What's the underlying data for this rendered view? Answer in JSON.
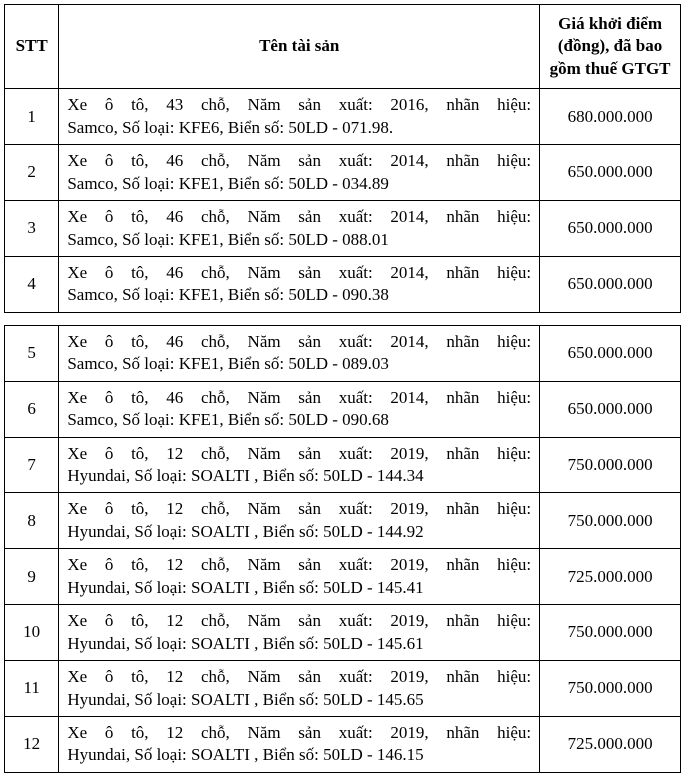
{
  "headers": {
    "stt": "STT",
    "name": "Tên tài sản",
    "price": "Giá khởi điểm (đồng), đã bao gồm thuế GTGT"
  },
  "group1": [
    {
      "stt": "1",
      "line1": "Xe ô tô, 43 chỗ, Năm sản xuất: 2016, nhãn hiệu:",
      "line2": "Samco, Số loại: KFE6, Biển số: 50LD - 071.98.",
      "price": "680.000.000"
    },
    {
      "stt": "2",
      "line1": "Xe ô tô, 46 chỗ, Năm sản xuất: 2014, nhãn hiệu:",
      "line2": "Samco, Số loại: KFE1, Biển số: 50LD - 034.89",
      "price": "650.000.000"
    },
    {
      "stt": "3",
      "line1": "Xe ô tô, 46 chỗ, Năm sản xuất: 2014, nhãn hiệu:",
      "line2": "Samco, Số loại: KFE1, Biển số: 50LD - 088.01",
      "price": "650.000.000"
    },
    {
      "stt": "4",
      "line1": "Xe ô tô, 46 chỗ, Năm sản xuất: 2014, nhãn hiệu:",
      "line2": "Samco, Số loại: KFE1, Biển số: 50LD - 090.38",
      "price": "650.000.000"
    }
  ],
  "group2": [
    {
      "stt": "5",
      "line1": "Xe ô tô, 46 chỗ, Năm sản xuất: 2014, nhãn hiệu:",
      "line2": "Samco, Số loại: KFE1, Biển số: 50LD - 089.03",
      "price": "650.000.000"
    },
    {
      "stt": "6",
      "line1": "Xe ô tô, 46 chỗ, Năm sản xuất: 2014, nhãn hiệu:",
      "line2": "Samco, Số loại: KFE1, Biển số: 50LD - 090.68",
      "price": "650.000.000"
    },
    {
      "stt": "7",
      "line1": "Xe ô tô, 12 chỗ, Năm sản xuất: 2019, nhãn hiệu:",
      "line2": "Hyundai, Số loại: SOALTI , Biển số: 50LD - 144.34",
      "price": "750.000.000"
    },
    {
      "stt": "8",
      "line1": "Xe ô tô, 12 chỗ, Năm sản xuất: 2019, nhãn hiệu:",
      "line2": "Hyundai, Số loại: SOALTI , Biển số: 50LD - 144.92",
      "price": "750.000.000"
    },
    {
      "stt": "9",
      "line1": "Xe ô tô, 12 chỗ, Năm sản xuất: 2019, nhãn hiệu:",
      "line2": "Hyundai, Số loại: SOALTI , Biển số: 50LD - 145.41",
      "price": "725.000.000"
    },
    {
      "stt": "10",
      "line1": "Xe ô tô, 12 chỗ, Năm sản xuất: 2019, nhãn hiệu:",
      "line2": "Hyundai, Số loại: SOALTI , Biển số: 50LD - 145.61",
      "price": "750.000.000"
    },
    {
      "stt": "11",
      "line1": "Xe ô tô, 12 chỗ, Năm sản xuất: 2019, nhãn hiệu:",
      "line2": "Hyundai, Số loại: SOALTI , Biển số: 50LD - 145.65",
      "price": "750.000.000"
    },
    {
      "stt": "12",
      "line1": "Xe ô tô, 12 chỗ, Năm sản xuất: 2019, nhãn hiệu:",
      "line2": "Hyundai, Số loại: SOALTI , Biển số: 50LD - 146.15",
      "price": "725.000.000"
    }
  ]
}
